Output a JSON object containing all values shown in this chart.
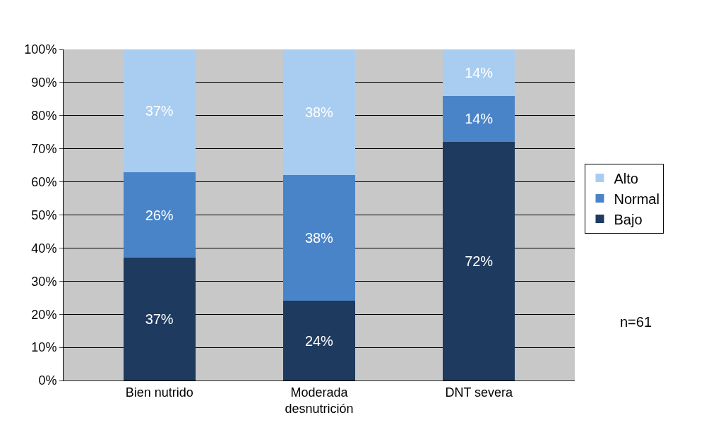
{
  "chart_data": {
    "type": "bar",
    "stacked": true,
    "categories": [
      "Bien nutrido",
      "Moderada desnutrición",
      "DNT severa"
    ],
    "series": [
      {
        "name": "Bajo",
        "color": "#1f3a5f",
        "values": [
          37,
          24,
          72
        ],
        "value_labels": [
          "37%",
          "24%",
          "72%"
        ]
      },
      {
        "name": "Normal",
        "color": "#4a84c8",
        "values": [
          26,
          38,
          14
        ],
        "value_labels": [
          "26%",
          "38%",
          "14%"
        ]
      },
      {
        "name": "Alto",
        "color": "#a9cdf0",
        "values": [
          37,
          38,
          14
        ],
        "value_labels": [
          "37%",
          "38%",
          "14%"
        ]
      }
    ],
    "ylim": [
      0,
      100
    ],
    "yticks": [
      {
        "value": 0,
        "label": "0%"
      },
      {
        "value": 10,
        "label": "10%"
      },
      {
        "value": 20,
        "label": "20%"
      },
      {
        "value": 30,
        "label": "30%"
      },
      {
        "value": 40,
        "label": "40%"
      },
      {
        "value": 50,
        "label": "50%"
      },
      {
        "value": 60,
        "label": "60%"
      },
      {
        "value": 70,
        "label": "70%"
      },
      {
        "value": 80,
        "label": "80%"
      },
      {
        "value": 90,
        "label": "90%"
      },
      {
        "value": 100,
        "label": "100%"
      }
    ],
    "grid": "y",
    "legend": "right",
    "annotations": [
      "n=61"
    ]
  }
}
